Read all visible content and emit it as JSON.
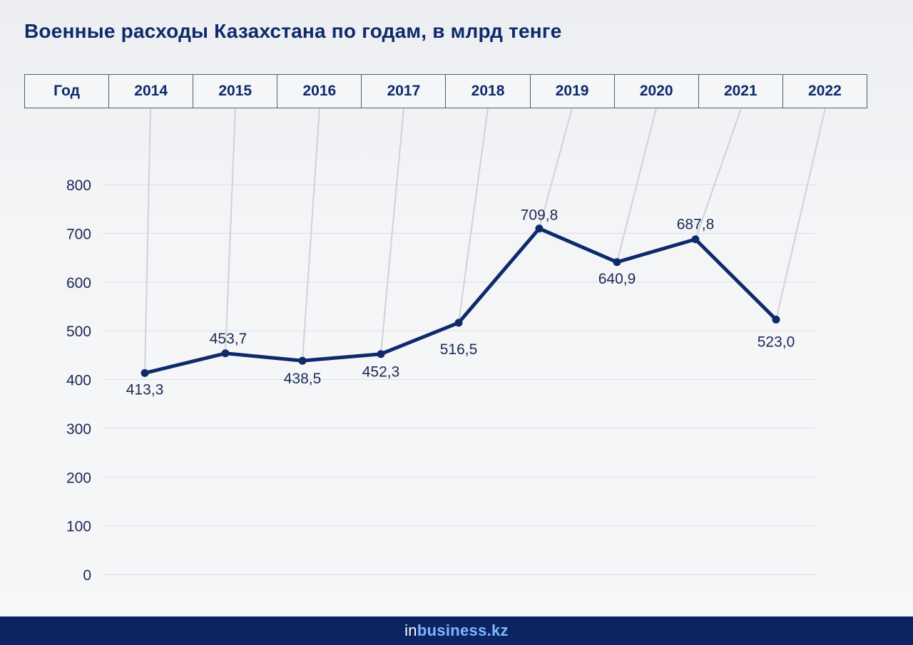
{
  "header": {
    "title": "Военные расходы Казахстана по годам, в млрд тенге"
  },
  "table": {
    "header_label": "Год"
  },
  "footer": {
    "brand_prefix": "in",
    "brand_rest": "business.kz"
  },
  "colors": {
    "line": "#0f2a6b",
    "title": "#0f2a6b",
    "footer": "#0c2461",
    "connector": "#d0d2d6",
    "grid": "#dcdee2"
  },
  "chart_data": {
    "type": "line",
    "title": "Военные расходы Казахстана по годам, в млрд тенге",
    "xlabel": "",
    "ylabel": "",
    "categories": [
      "2014",
      "2015",
      "2016",
      "2017",
      "2018",
      "2019",
      "2020",
      "2021",
      "2022"
    ],
    "series": [
      {
        "name": "",
        "values": [
          413.3,
          453.7,
          438.5,
          452.3,
          516.5,
          709.8,
          640.9,
          687.8,
          523.0
        ]
      }
    ],
    "value_labels": [
      "413,3",
      "453,7",
      "438,5",
      "452,3",
      "516,5",
      "709,8",
      "640,9",
      "687,8",
      "523,0"
    ],
    "ylim": [
      0,
      800
    ],
    "yticks": [
      "0",
      "100",
      "200",
      "300",
      "400",
      "500",
      "600",
      "700",
      "800"
    ],
    "grid": true,
    "legend": "none"
  }
}
